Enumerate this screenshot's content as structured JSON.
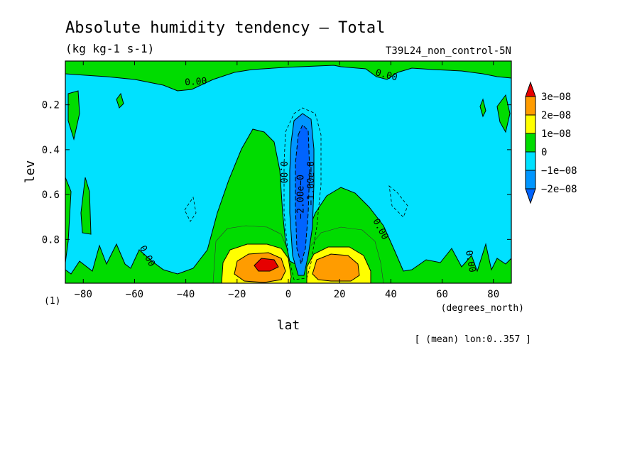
{
  "chart_data": {
    "type": "contour",
    "title": "Absolute humidity tendency — Total",
    "units_label": "(kg kg-1 s-1)",
    "experiment_label": "T39L24_non_control-5N",
    "xlabel": "lat",
    "xunits": "(degrees_north)",
    "ylabel": "lev",
    "yunits": "(1)",
    "xlim": [
      -87,
      87
    ],
    "ylim": [
      0.005,
      0.995
    ],
    "y_inverted": true,
    "x_ticks": [
      -80,
      -60,
      -40,
      -20,
      0,
      20,
      40,
      60,
      80
    ],
    "x_tick_labels": [
      "−80",
      "−60",
      "−40",
      "−20",
      "0",
      "20",
      "40",
      "60",
      "80"
    ],
    "y_ticks": [
      0.2,
      0.4,
      0.6,
      0.8
    ],
    "y_tick_labels": [
      "0.2",
      "0.4",
      "0.6",
      "0.8"
    ],
    "footnote": "[ (mean) lon:0..357 ]",
    "colorbar": {
      "levels": [
        "3e−08",
        "2e−08",
        "1e−08",
        "0",
        "−1e−08",
        "−2e−08"
      ],
      "colors": [
        "#ff0000",
        "#ff9c00",
        "#ffff00",
        "#00dc00",
        "#00e1ff",
        "#0096ff",
        "#0064ff",
        "#e60000"
      ]
    },
    "contour_labels": [
      {
        "text": "0.00",
        "lat": -36,
        "lev": 0.11,
        "rot": -4
      },
      {
        "text": "0.00",
        "lat": 38,
        "lev": 0.08,
        "rot": 14
      },
      {
        "text": "0.00",
        "lat": -3,
        "lev": 0.5,
        "rot": 90
      },
      {
        "text": "−2.00e−0",
        "lat": 6,
        "lev": 0.61,
        "rot": -90
      },
      {
        "text": "−1.00e−0",
        "lat": 10,
        "lev": 0.55,
        "rot": -90
      },
      {
        "text": "0.00",
        "lat": 35,
        "lev": 0.76,
        "rot": 62
      },
      {
        "text": "0.00",
        "lat": -56,
        "lev": 0.88,
        "rot": 62
      },
      {
        "text": "0.00",
        "lat": 70,
        "lev": 0.9,
        "rot": 80
      }
    ]
  }
}
